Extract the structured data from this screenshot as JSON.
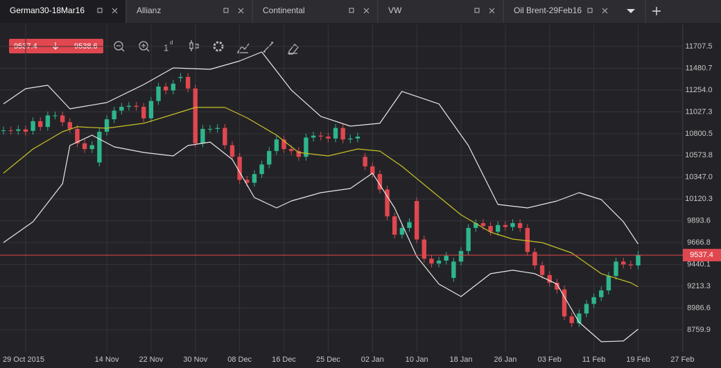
{
  "tabs": [
    {
      "label": "German30-18Mar16"
    },
    {
      "label": "Allianz"
    },
    {
      "label": "Continental"
    },
    {
      "label": "VW"
    },
    {
      "label": "Oil Brent-29Feb16"
    }
  ],
  "quote": {
    "sell": 9537.4,
    "buy": 9538.6
  },
  "toolbar": {
    "interval": "1",
    "interval_unit": "d"
  },
  "chart_data": {
    "type": "candlestick",
    "up_color": "#2fb58c",
    "down_color": "#e0474f",
    "grid": true,
    "xlim": [
      0,
      93
    ],
    "ylim": [
      8529,
      11931
    ],
    "xticks": [
      {
        "value": 3,
        "label": "29 Oct 2015"
      },
      {
        "value": 14,
        "label": "14 Nov"
      },
      {
        "value": 20,
        "label": "22 Nov"
      },
      {
        "value": 26,
        "label": "30 Nov"
      },
      {
        "value": 32,
        "label": "08 Dec"
      },
      {
        "value": 38,
        "label": "16 Dec"
      },
      {
        "value": 44,
        "label": "25 Dec"
      },
      {
        "value": 50,
        "label": "02 Jan"
      },
      {
        "value": 56,
        "label": "10 Jan"
      },
      {
        "value": 62,
        "label": "18 Jan"
      },
      {
        "value": 68,
        "label": "26 Jan"
      },
      {
        "value": 74,
        "label": "03 Feb"
      },
      {
        "value": 80,
        "label": "11 Feb"
      },
      {
        "value": 86,
        "label": "19 Feb"
      },
      {
        "value": 92,
        "label": "27 Feb"
      }
    ],
    "yticks": [
      8759.9,
      8986.6,
      9213.3,
      9440.1,
      9666.8,
      9893.6,
      10120.3,
      {
        "value": 10347,
        "label": "10347.0"
      },
      10573.8,
      10800.5,
      11027.3,
      {
        "value": 11254,
        "label": "11254.0"
      },
      11480.7,
      11707.5
    ],
    "open": [
      10830,
      10835,
      10830,
      10845,
      10830,
      10930,
      10870,
      10990,
      10990,
      10920,
      10850,
      10700,
      10640,
      10500,
      10820,
      10950,
      11040,
      11080,
      11090,
      11080,
      10960,
      11140,
      11290,
      11250,
      11380,
      11390,
      11270,
      10700,
      10850,
      10850,
      10860,
      10680,
      10560,
      10320,
      10290,
      10380,
      10480,
      10620,
      10740,
      10640,
      10620,
      10560,
      10760,
      10780,
      10770,
      10750,
      10860,
      10740,
      10750,
      10560,
      10460,
      10380,
      10220,
      9940,
      9750,
      9820,
      10100,
      9700,
      9500,
      9450,
      9480,
      9300,
      9470,
      9580,
      9820,
      9870,
      9840,
      9780,
      9850,
      9830,
      9870,
      9820,
      9570,
      9430,
      9330,
      9250,
      9180,
      8900,
      8830,
      8930,
      9030,
      9100,
      9170,
      9320,
      9470,
      9440,
      9430
    ],
    "high": [
      10875,
      10875,
      10885,
      10885,
      10970,
      10970,
      11030,
      11030,
      11030,
      10960,
      10890,
      10740,
      10720,
      10860,
      10990,
      11080,
      11120,
      11130,
      11130,
      11120,
      11180,
      11330,
      11330,
      11360,
      11430,
      11430,
      11310,
      10890,
      10890,
      10900,
      10900,
      10720,
      10600,
      10360,
      10420,
      10520,
      10660,
      10780,
      10780,
      10680,
      10660,
      10800,
      10820,
      10820,
      10810,
      10900,
      10900,
      10790,
      10810,
      10600,
      10500,
      10420,
      10260,
      9980,
      9860,
      9920,
      10140,
      9740,
      9540,
      9520,
      9570,
      9510,
      9620,
      9860,
      9910,
      9910,
      9880,
      9890,
      9890,
      9910,
      9910,
      9860,
      9610,
      9470,
      9370,
      9290,
      9220,
      8940,
      8970,
      9070,
      9140,
      9210,
      9360,
      9510,
      9510,
      9480,
      9580
    ],
    "low": [
      10790,
      10790,
      10790,
      10780,
      10790,
      10830,
      10830,
      10950,
      10880,
      10810,
      10660,
      10600,
      10600,
      10460,
      10780,
      10910,
      11000,
      11040,
      11040,
      10920,
      10920,
      11100,
      11210,
      11210,
      11340,
      11230,
      10660,
      10660,
      10810,
      10810,
      10640,
      10520,
      10280,
      10250,
      10250,
      10340,
      10440,
      10580,
      10600,
      10580,
      10520,
      10520,
      10720,
      10730,
      10710,
      10710,
      10700,
      10700,
      10710,
      10420,
      10340,
      10180,
      9900,
      9710,
      9710,
      9780,
      9660,
      9460,
      9410,
      9410,
      9440,
      9260,
      9430,
      9540,
      9780,
      9800,
      9740,
      9740,
      9790,
      9790,
      9780,
      9530,
      9390,
      9290,
      9210,
      9140,
      8860,
      8790,
      8790,
      8890,
      8990,
      9060,
      9130,
      9280,
      9400,
      9390,
      9390
    ],
    "close": [
      10835,
      10830,
      10845,
      10820,
      10930,
      10870,
      10990,
      10990,
      10920,
      10850,
      10700,
      10640,
      10680,
      10820,
      10950,
      11040,
      11080,
      11090,
      11080,
      10960,
      11140,
      11290,
      11250,
      11320,
      11390,
      11270,
      10700,
      10850,
      10850,
      10860,
      10680,
      10560,
      10320,
      10290,
      10380,
      10480,
      10620,
      10740,
      10640,
      10620,
      10560,
      10760,
      10780,
      10770,
      10750,
      10860,
      10740,
      10750,
      10770,
      10460,
      10380,
      10220,
      9940,
      9750,
      9820,
      9880,
      9700,
      9500,
      9450,
      9480,
      9530,
      9470,
      9580,
      9820,
      9870,
      9840,
      9780,
      9850,
      9830,
      9870,
      9820,
      9570,
      9430,
      9330,
      9250,
      9180,
      8900,
      8830,
      8930,
      9030,
      9100,
      9170,
      9320,
      9470,
      9440,
      9430,
      9537.4
    ],
    "bands": [
      {
        "color": "#e8e8e8",
        "x": [
          0,
          3,
          6,
          9,
          14,
          19,
          23,
          28,
          32,
          35,
          39,
          43,
          47,
          51,
          54,
          59,
          63,
          67,
          71,
          75,
          78,
          81,
          84,
          86
        ],
        "values": [
          11110,
          11268,
          11304,
          11059,
          11124,
          11311,
          11484,
          11470,
          11556,
          11650,
          11254,
          10980,
          10879,
          10908,
          11240,
          11110,
          10677,
          10064,
          10028,
          10100,
          10187,
          10115,
          9884,
          9653
        ]
      },
      {
        "color": "#c9c227",
        "x": [
          0,
          4,
          8,
          10,
          14,
          19,
          23,
          26,
          30,
          33,
          37,
          40,
          44,
          48,
          51,
          54,
          58,
          62,
          66,
          69,
          73,
          77,
          81,
          85,
          86
        ],
        "values": [
          10389,
          10641,
          10821,
          10872,
          10857,
          10908,
          11001,
          11073,
          11073,
          10965,
          10785,
          10605,
          10569,
          10641,
          10619,
          10461,
          10208,
          9956,
          9776,
          9704,
          9668,
          9560,
          9344,
          9250,
          9207
        ]
      },
      {
        "color": "#e8e8e8",
        "x": [
          0,
          4,
          8,
          9,
          12,
          15,
          19,
          23,
          25,
          28,
          31,
          34,
          37,
          39,
          43,
          47,
          50,
          53,
          56,
          59,
          62,
          66,
          69,
          72,
          75,
          78,
          81,
          84,
          86
        ],
        "values": [
          9668,
          9884,
          10280,
          10677,
          10785,
          10663,
          10605,
          10569,
          10677,
          10713,
          10533,
          10136,
          10028,
          10100,
          10187,
          10230,
          10389,
          10028,
          9524,
          9236,
          9106,
          9344,
          9380,
          9344,
          9236,
          8839,
          8637,
          8644,
          8767
        ]
      }
    ],
    "last_price": 9537.4,
    "last_price_color": "#e0474f"
  }
}
